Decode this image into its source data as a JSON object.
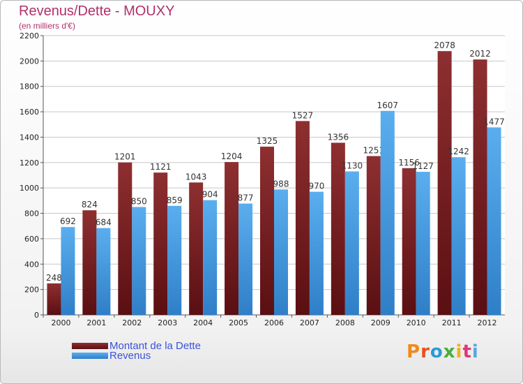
{
  "chart_data": {
    "type": "bar",
    "title": "Revenus/Dette - MOUXY",
    "subtitle": "(en milliers d'€)",
    "categories": [
      "2000",
      "2001",
      "2002",
      "2003",
      "2004",
      "2005",
      "2006",
      "2007",
      "2008",
      "2009",
      "2010",
      "2011",
      "2012"
    ],
    "series": [
      {
        "name": "Montant de la Dette",
        "color": "#8b2a2a",
        "values": [
          248,
          824,
          1201,
          1121,
          1043,
          1204,
          1325,
          1527,
          1356,
          1251,
          1156,
          2078,
          2012
        ]
      },
      {
        "name": "Revenus",
        "color": "#4aa3e8",
        "values": [
          692,
          684,
          850,
          859,
          904,
          877,
          988,
          970,
          1130,
          1607,
          1127,
          1242,
          1477
        ]
      }
    ],
    "ylim": [
      0,
      2200
    ],
    "yticks": [
      0,
      200,
      400,
      600,
      800,
      1000,
      1200,
      1400,
      1600,
      1800,
      2000,
      2200
    ],
    "grid": true,
    "legend_position": "bottom-left"
  },
  "logo": {
    "text": "Proxiti",
    "icon": "proxiti-logo"
  }
}
